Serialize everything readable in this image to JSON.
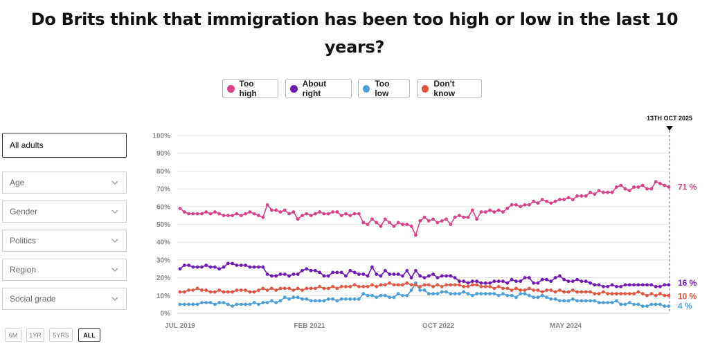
{
  "title": "Do Brits think that immigration has been too high or low in the last 10 years?",
  "legend": [
    {
      "label": "Too high",
      "color": "#d9418a"
    },
    {
      "label": "About right",
      "color": "#7018b8"
    },
    {
      "label": "Too low",
      "color": "#4a9fd9"
    },
    {
      "label": "Don't know",
      "color": "#e2553f"
    }
  ],
  "filters": {
    "audience": "All adults",
    "dropdowns": [
      "Age",
      "Gender",
      "Politics",
      "Region",
      "Social grade"
    ]
  },
  "time_ranges": [
    "6M",
    "1YR",
    "5YRS",
    "ALL"
  ],
  "active_range": "ALL",
  "chart_data": {
    "type": "line",
    "title": "Do Brits think that immigration has been too high or low in the last 10 years?",
    "marker_label": "13TH OCT 2025",
    "x_ticks": [
      "JUL 2019",
      "FEB 2021",
      "OCT 2022",
      "MAY 2024"
    ],
    "y_ticks": [
      "0%",
      "10%",
      "20%",
      "30%",
      "40%",
      "50%",
      "60%",
      "70%",
      "80%",
      "90%",
      "100%"
    ],
    "ylim": [
      0,
      100
    ],
    "series": [
      {
        "name": "Too high",
        "color": "#d9418a",
        "end_label": "71 %",
        "values": [
          59,
          57,
          56,
          56,
          56,
          56,
          57,
          56,
          57,
          56,
          55,
          55,
          55,
          56,
          55,
          56,
          57,
          56,
          55,
          54,
          61,
          58,
          58,
          57,
          58,
          56,
          57,
          53,
          55,
          56,
          55,
          56,
          57,
          56,
          56,
          57,
          57,
          55,
          56,
          55,
          56,
          56,
          51,
          50,
          53,
          51,
          49,
          53,
          51,
          49,
          51,
          50,
          50,
          49,
          44,
          52,
          54,
          52,
          53,
          51,
          52,
          53,
          50,
          54,
          55,
          54,
          54,
          58,
          53,
          57,
          57,
          58,
          57,
          58,
          57,
          59,
          61,
          61,
          60,
          61,
          61,
          63,
          62,
          64,
          63,
          62,
          63,
          64,
          64,
          65,
          64,
          66,
          66,
          66,
          68,
          67,
          69,
          68,
          68,
          68,
          71,
          72,
          70,
          69,
          71,
          71,
          72,
          70,
          70,
          74,
          73,
          72,
          71
        ]
      },
      {
        "name": "About right",
        "color": "#7018b8",
        "end_label": "16 %",
        "values": [
          25,
          27,
          27,
          26,
          26,
          26,
          27,
          26,
          26,
          25,
          26,
          28,
          28,
          27,
          27,
          27,
          26,
          26,
          26,
          26,
          22,
          21,
          21,
          22,
          22,
          21,
          22,
          22,
          24,
          25,
          24,
          24,
          23,
          21,
          21,
          23,
          23,
          23,
          21,
          24,
          23,
          22,
          22,
          21,
          26,
          22,
          21,
          24,
          22,
          22,
          22,
          21,
          24,
          20,
          24,
          21,
          20,
          21,
          22,
          20,
          21,
          21,
          21,
          20,
          18,
          18,
          17,
          18,
          18,
          17,
          17,
          17,
          18,
          18,
          18,
          17,
          19,
          18,
          18,
          20,
          20,
          17,
          17,
          19,
          19,
          18,
          20,
          21,
          19,
          18,
          18,
          19,
          18,
          18,
          17,
          16,
          16,
          15,
          15,
          16,
          15,
          15,
          16,
          16,
          16,
          16,
          16,
          16,
          16,
          15,
          15,
          16,
          16
        ]
      },
      {
        "name": "Too low",
        "color": "#4a9fd9",
        "end_label": "4 %",
        "values": [
          5,
          5,
          5,
          5,
          5,
          6,
          6,
          6,
          5,
          6,
          6,
          5,
          4,
          5,
          5,
          5,
          5,
          6,
          5,
          6,
          6,
          7,
          6,
          7,
          9,
          8,
          9,
          9,
          8,
          8,
          7,
          7,
          7,
          7,
          8,
          8,
          7,
          8,
          8,
          8,
          8,
          8,
          11,
          10,
          10,
          9,
          10,
          10,
          9,
          9,
          11,
          10,
          10,
          13,
          17,
          13,
          13,
          11,
          11,
          11,
          12,
          12,
          11,
          11,
          11,
          12,
          11,
          10,
          11,
          11,
          11,
          11,
          11,
          10,
          11,
          10,
          10,
          9,
          11,
          11,
          10,
          9,
          9,
          10,
          9,
          8,
          8,
          7,
          7,
          7,
          8,
          7,
          7,
          7,
          7,
          7,
          6,
          6,
          6,
          6,
          7,
          5,
          5,
          6,
          5,
          5,
          4,
          4,
          5,
          5,
          5,
          4,
          4
        ]
      },
      {
        "name": "Don't know",
        "color": "#e2553f",
        "end_label": "10 %",
        "values": [
          12,
          12,
          13,
          13,
          14,
          13,
          13,
          12,
          12,
          13,
          12,
          12,
          12,
          13,
          13,
          13,
          12,
          12,
          13,
          14,
          13,
          14,
          13,
          14,
          14,
          14,
          13,
          14,
          13,
          14,
          14,
          14,
          15,
          14,
          14,
          15,
          14,
          15,
          15,
          15,
          16,
          15,
          15,
          15,
          16,
          15,
          16,
          16,
          17,
          16,
          16,
          16,
          17,
          16,
          16,
          15,
          16,
          16,
          15,
          16,
          15,
          16,
          16,
          16,
          16,
          15,
          15,
          16,
          16,
          15,
          15,
          15,
          14,
          15,
          14,
          14,
          13,
          14,
          13,
          13,
          14,
          13,
          13,
          12,
          13,
          13,
          12,
          13,
          12,
          12,
          13,
          12,
          12,
          12,
          12,
          11,
          11,
          12,
          11,
          11,
          11,
          11,
          11,
          11,
          11,
          12,
          11,
          10,
          11,
          10,
          11,
          10,
          10
        ]
      }
    ]
  }
}
